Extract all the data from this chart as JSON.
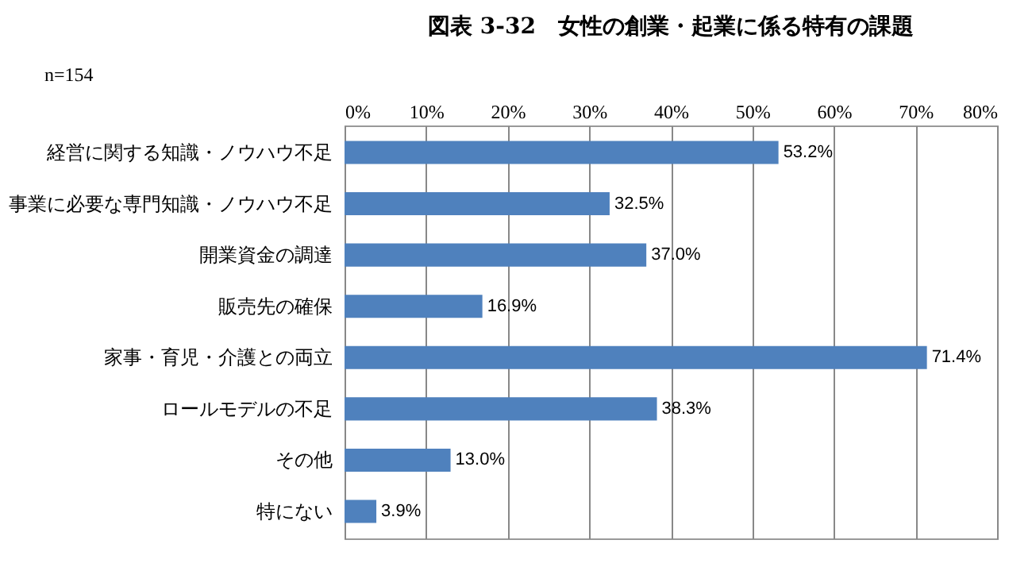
{
  "chart_data": {
    "type": "bar",
    "orientation": "horizontal",
    "title": "図表 3-32　女性の創業・起業に係る特有の課題",
    "annotations": [
      "n=154"
    ],
    "categories": [
      "経営に関する知識・ノウハウ不足",
      "事業に必要な専門知識・ノウハウ不足",
      "開業資金の調達",
      "販売先の確保",
      "家事・育児・介護との両立",
      "ロールモデルの不足",
      "その他",
      "特にない"
    ],
    "values": [
      53.2,
      32.5,
      37.0,
      16.9,
      71.4,
      38.3,
      13.0,
      3.9
    ],
    "value_labels": [
      "53.2%",
      "32.5%",
      "37.0%",
      "16.9%",
      "71.4%",
      "38.3%",
      "13.0%",
      "3.9%"
    ],
    "color": "#4f81bd",
    "xlim": [
      0,
      80
    ],
    "xticks": [
      {
        "value": 0,
        "label": "0%"
      },
      {
        "value": 10,
        "label": "10%"
      },
      {
        "value": 20,
        "label": "20%"
      },
      {
        "value": 30,
        "label": "30%"
      },
      {
        "value": 40,
        "label": "40%"
      },
      {
        "value": 50,
        "label": "50%"
      },
      {
        "value": 60,
        "label": "60%"
      },
      {
        "value": 70,
        "label": "70%"
      },
      {
        "value": 80,
        "label": "80%"
      }
    ],
    "grid": "x"
  }
}
